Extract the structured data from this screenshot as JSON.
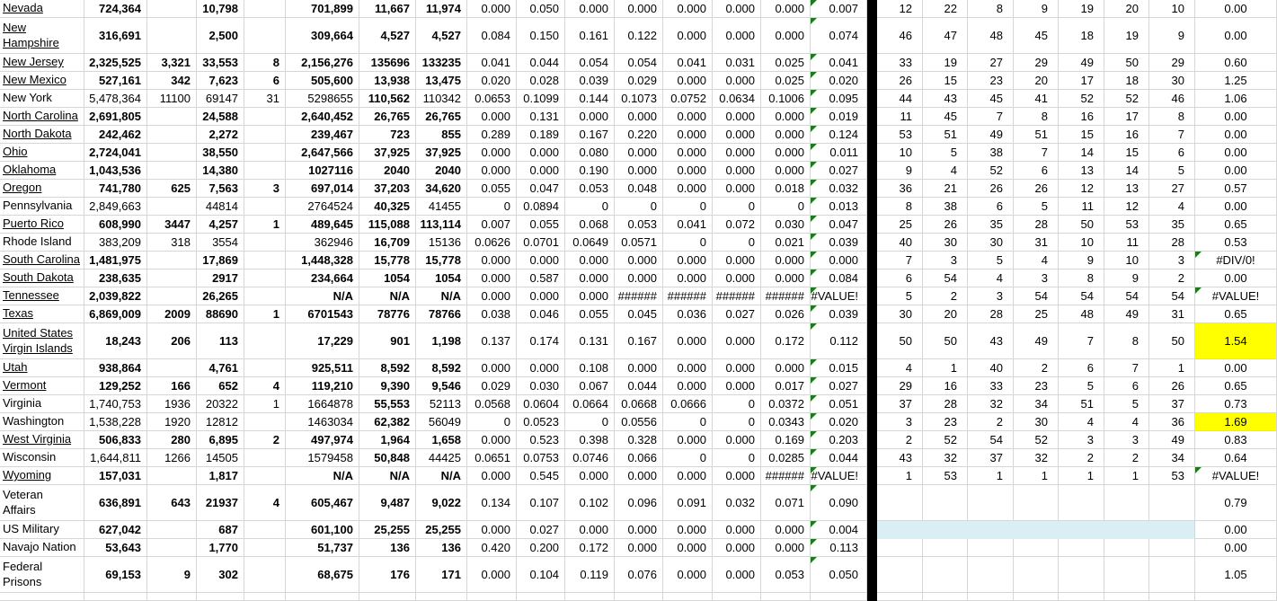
{
  "colors": {
    "highlight_yellow": "#ffff00",
    "highlight_blue": "#daeef3",
    "error_indicator_green": "#1f7a1f",
    "divider_black": "#000000",
    "gridline": "#d6d6d6"
  },
  "table": {
    "rows": [
      {
        "name": "Nevada",
        "underlined": true,
        "bold": true,
        "left": [
          "724,364",
          "",
          "10,798",
          "",
          "701,899",
          "11,667",
          "11,974"
        ],
        "decimals": [
          "0.000",
          "0.050",
          "0.000",
          "0.000",
          "0.000",
          "0.000",
          "0.000"
        ],
        "summary": "0.007",
        "ranks": [
          "12",
          "22",
          "8",
          "9",
          "19",
          "20",
          "10"
        ],
        "final": "0.00",
        "final_highlight": false,
        "ranks_highlight": false
      },
      {
        "name": "New\nHampshire",
        "underlined": true,
        "bold": true,
        "left": [
          "316,691",
          "",
          "2,500",
          "",
          "309,664",
          "4,527",
          "4,527"
        ],
        "decimals": [
          "0.084",
          "0.150",
          "0.161",
          "0.122",
          "0.000",
          "0.000",
          "0.000"
        ],
        "summary": "0.074",
        "ranks": [
          "46",
          "47",
          "48",
          "45",
          "18",
          "19",
          "9"
        ],
        "final": "0.00",
        "final_highlight": false,
        "ranks_highlight": false
      },
      {
        "name": "New Jersey",
        "underlined": true,
        "bold": true,
        "left": [
          "2,325,525",
          "3,321",
          "33,553",
          "8",
          "2,156,276",
          "135696",
          "133235"
        ],
        "decimals": [
          "0.041",
          "0.044",
          "0.054",
          "0.054",
          "0.041",
          "0.031",
          "0.025"
        ],
        "summary": "0.041",
        "ranks": [
          "33",
          "19",
          "27",
          "29",
          "49",
          "50",
          "29"
        ],
        "final": "0.60",
        "final_highlight": false,
        "ranks_highlight": false
      },
      {
        "name": "New Mexico",
        "underlined": true,
        "bold": true,
        "left": [
          "527,161",
          "342",
          "7,623",
          "6",
          "505,600",
          "13,938",
          "13,475"
        ],
        "decimals": [
          "0.020",
          "0.028",
          "0.039",
          "0.029",
          "0.000",
          "0.000",
          "0.025"
        ],
        "summary": "0.020",
        "ranks": [
          "26",
          "15",
          "23",
          "20",
          "17",
          "18",
          "30"
        ],
        "final": "1.25",
        "final_highlight": false,
        "ranks_highlight": false
      },
      {
        "name": "New York",
        "underlined": false,
        "bold": false,
        "left": [
          "5,478,364",
          "11100",
          "69147",
          "31",
          "5298655",
          "110,562",
          "110342"
        ],
        "decimals": [
          "0.0653",
          "0.1099",
          "0.144",
          "0.1073",
          "0.0752",
          "0.0634",
          "0.1006"
        ],
        "summary": "0.095",
        "ranks": [
          "44",
          "43",
          "45",
          "41",
          "52",
          "52",
          "46"
        ],
        "final": "1.06",
        "final_highlight": false,
        "ranks_highlight": false
      },
      {
        "name": "North Carolina",
        "underlined": true,
        "bold": true,
        "left": [
          "2,691,805",
          "",
          "24,588",
          "",
          "2,640,452",
          "26,765",
          "26,765"
        ],
        "decimals": [
          "0.000",
          "0.131",
          "0.000",
          "0.000",
          "0.000",
          "0.000",
          "0.000"
        ],
        "summary": "0.019",
        "ranks": [
          "11",
          "45",
          "7",
          "8",
          "16",
          "17",
          "8"
        ],
        "final": "0.00",
        "final_highlight": false,
        "ranks_highlight": false
      },
      {
        "name": "North Dakota",
        "underlined": true,
        "bold": true,
        "left": [
          "242,462",
          "",
          "2,272",
          "",
          "239,467",
          "723",
          "855"
        ],
        "decimals": [
          "0.289",
          "0.189",
          "0.167",
          "0.220",
          "0.000",
          "0.000",
          "0.000"
        ],
        "summary": "0.124",
        "ranks": [
          "53",
          "51",
          "49",
          "51",
          "15",
          "16",
          "7"
        ],
        "final": "0.00",
        "final_highlight": false,
        "ranks_highlight": false
      },
      {
        "name": "Ohio",
        "underlined": true,
        "bold": true,
        "left": [
          "2,724,041",
          "",
          "38,550",
          "",
          "2,647,566",
          "37,925",
          "37,925"
        ],
        "decimals": [
          "0.000",
          "0.000",
          "0.080",
          "0.000",
          "0.000",
          "0.000",
          "0.000"
        ],
        "summary": "0.011",
        "ranks": [
          "10",
          "5",
          "38",
          "7",
          "14",
          "15",
          "6"
        ],
        "final": "0.00",
        "final_highlight": false,
        "ranks_highlight": false
      },
      {
        "name": "Oklahoma",
        "underlined": true,
        "bold": true,
        "left": [
          "1,043,536",
          "",
          "14,380",
          "",
          "1027116",
          "2040",
          "2040"
        ],
        "decimals": [
          "0.000",
          "0.000",
          "0.190",
          "0.000",
          "0.000",
          "0.000",
          "0.000"
        ],
        "summary": "0.027",
        "ranks": [
          "9",
          "4",
          "52",
          "6",
          "13",
          "14",
          "5"
        ],
        "final": "0.00",
        "final_highlight": false,
        "ranks_highlight": false
      },
      {
        "name": "Oregon",
        "underlined": true,
        "bold": true,
        "left": [
          "741,780",
          "625",
          "7,563",
          "3",
          "697,014",
          "37,203",
          "34,620"
        ],
        "decimals": [
          "0.055",
          "0.047",
          "0.053",
          "0.048",
          "0.000",
          "0.000",
          "0.018"
        ],
        "summary": "0.032",
        "ranks": [
          "36",
          "21",
          "26",
          "26",
          "12",
          "13",
          "27"
        ],
        "final": "0.57",
        "final_highlight": false,
        "ranks_highlight": false
      },
      {
        "name": "Pennsylvania",
        "underlined": false,
        "bold": false,
        "left": [
          "2,849,663",
          "",
          "44814",
          "",
          "2764524",
          "40,325",
          "41455"
        ],
        "decimals": [
          "0",
          "0.0894",
          "0",
          "0",
          "0",
          "0",
          "0"
        ],
        "summary": "0.013",
        "ranks": [
          "8",
          "38",
          "6",
          "5",
          "11",
          "12",
          "4"
        ],
        "final": "0.00",
        "final_highlight": false,
        "ranks_highlight": false
      },
      {
        "name": "Puerto Rico",
        "underlined": true,
        "bold": true,
        "left": [
          "608,990",
          "3447",
          "4,257",
          "1",
          "489,645",
          "115,088",
          "113,114"
        ],
        "decimals": [
          "0.007",
          "0.055",
          "0.068",
          "0.053",
          "0.041",
          "0.072",
          "0.030"
        ],
        "summary": "0.047",
        "ranks": [
          "25",
          "26",
          "35",
          "28",
          "50",
          "53",
          "35"
        ],
        "final": "0.65",
        "final_highlight": false,
        "ranks_highlight": false
      },
      {
        "name": "Rhode Island",
        "underlined": false,
        "bold": false,
        "left": [
          "383,209",
          "318",
          "3554",
          "",
          "362946",
          "16,709",
          "15136"
        ],
        "decimals": [
          "0.0626",
          "0.0701",
          "0.0649",
          "0.0571",
          "0",
          "0",
          "0.021"
        ],
        "summary": "0.039",
        "ranks": [
          "40",
          "30",
          "30",
          "31",
          "10",
          "11",
          "28"
        ],
        "final": "0.53",
        "final_highlight": false,
        "ranks_highlight": false
      },
      {
        "name": "South Carolina",
        "underlined": true,
        "bold": true,
        "left": [
          "1,481,975",
          "",
          "17,869",
          "",
          "1,448,328",
          "15,778",
          "15,778"
        ],
        "decimals": [
          "0.000",
          "0.000",
          "0.000",
          "0.000",
          "0.000",
          "0.000",
          "0.000"
        ],
        "summary": "0.000",
        "ranks": [
          "7",
          "3",
          "5",
          "4",
          "9",
          "10",
          "3"
        ],
        "final": "#DIV/0!",
        "final_highlight": false,
        "ranks_highlight": false
      },
      {
        "name": "South Dakota",
        "underlined": true,
        "bold": true,
        "left": [
          "238,635",
          "",
          "2917",
          "",
          "234,664",
          "1054",
          "1054"
        ],
        "decimals": [
          "0.000",
          "0.587",
          "0.000",
          "0.000",
          "0.000",
          "0.000",
          "0.000"
        ],
        "summary": "0.084",
        "ranks": [
          "6",
          "54",
          "4",
          "3",
          "8",
          "9",
          "2"
        ],
        "final": "0.00",
        "final_highlight": false,
        "ranks_highlight": false
      },
      {
        "name": "Tennessee",
        "underlined": true,
        "bold": true,
        "left": [
          "2,039,822",
          "",
          "26,265",
          "",
          "N/A",
          "N/A",
          "N/A"
        ],
        "decimals": [
          "0.000",
          "0.000",
          "0.000",
          "######",
          "######",
          "######",
          "######"
        ],
        "summary": "#VALUE!",
        "ranks": [
          "5",
          "2",
          "3",
          "54",
          "54",
          "54",
          "54"
        ],
        "final": "#VALUE!",
        "final_highlight": false,
        "ranks_highlight": false
      },
      {
        "name": "Texas",
        "underlined": true,
        "bold": true,
        "left": [
          "6,869,009",
          "2009",
          "88690",
          "1",
          "6701543",
          "78776",
          "78766"
        ],
        "decimals": [
          "0.038",
          "0.046",
          "0.055",
          "0.045",
          "0.036",
          "0.027",
          "0.026"
        ],
        "summary": "0.039",
        "ranks": [
          "30",
          "20",
          "28",
          "25",
          "48",
          "49",
          "31"
        ],
        "final": "0.65",
        "final_highlight": false,
        "ranks_highlight": false
      },
      {
        "name": "United States\nVirgin Islands",
        "underlined": true,
        "bold": true,
        "left": [
          "18,243",
          "206",
          "113",
          "",
          "17,229",
          "901",
          "1,198"
        ],
        "decimals": [
          "0.137",
          "0.174",
          "0.131",
          "0.167",
          "0.000",
          "0.000",
          "0.172"
        ],
        "summary": "0.112",
        "ranks": [
          "50",
          "50",
          "43",
          "49",
          "7",
          "8",
          "50"
        ],
        "final": "1.54",
        "final_highlight": true,
        "ranks_highlight": false
      },
      {
        "name": "Utah",
        "underlined": true,
        "bold": true,
        "left": [
          "938,864",
          "",
          "4,761",
          "",
          "925,511",
          "8,592",
          "8,592"
        ],
        "decimals": [
          "0.000",
          "0.000",
          "0.108",
          "0.000",
          "0.000",
          "0.000",
          "0.000"
        ],
        "summary": "0.015",
        "ranks": [
          "4",
          "1",
          "40",
          "2",
          "6",
          "7",
          "1"
        ],
        "final": "0.00",
        "final_highlight": false,
        "ranks_highlight": false
      },
      {
        "name": "Vermont",
        "underlined": true,
        "bold": true,
        "left": [
          "129,252",
          "166",
          "652",
          "4",
          "119,210",
          "9,390",
          "9,546"
        ],
        "decimals": [
          "0.029",
          "0.030",
          "0.067",
          "0.044",
          "0.000",
          "0.000",
          "0.017"
        ],
        "summary": "0.027",
        "ranks": [
          "29",
          "16",
          "33",
          "23",
          "5",
          "6",
          "26"
        ],
        "final": "0.65",
        "final_highlight": false,
        "ranks_highlight": false
      },
      {
        "name": "Virginia",
        "underlined": false,
        "bold": false,
        "left": [
          "1,740,753",
          "1936",
          "20322",
          "1",
          "1664878",
          "55,553",
          "52113"
        ],
        "decimals": [
          "0.0568",
          "0.0604",
          "0.0664",
          "0.0668",
          "0.0666",
          "0",
          "0.0372"
        ],
        "summary": "0.051",
        "ranks": [
          "37",
          "28",
          "32",
          "34",
          "51",
          "5",
          "37"
        ],
        "final": "0.73",
        "final_highlight": false,
        "ranks_highlight": false
      },
      {
        "name": "Washington",
        "underlined": false,
        "bold": false,
        "left": [
          "1,538,228",
          "1920",
          "12812",
          "",
          "1463034",
          "62,382",
          "56049"
        ],
        "decimals": [
          "0",
          "0.0523",
          "0",
          "0.0556",
          "0",
          "0",
          "0.0343"
        ],
        "summary": "0.020",
        "ranks": [
          "3",
          "23",
          "2",
          "30",
          "4",
          "4",
          "36"
        ],
        "final": "1.69",
        "final_highlight": true,
        "ranks_highlight": false
      },
      {
        "name": "West Virginia",
        "underlined": true,
        "bold": true,
        "left": [
          "506,833",
          "280",
          "6,895",
          "2",
          "497,974",
          "1,964",
          "1,658"
        ],
        "decimals": [
          "0.000",
          "0.523",
          "0.398",
          "0.328",
          "0.000",
          "0.000",
          "0.169"
        ],
        "summary": "0.203",
        "ranks": [
          "2",
          "52",
          "54",
          "52",
          "3",
          "3",
          "49"
        ],
        "final": "0.83",
        "final_highlight": false,
        "ranks_highlight": false
      },
      {
        "name": "Wisconsin",
        "underlined": false,
        "bold": false,
        "left": [
          "1,644,811",
          "1266",
          "14505",
          "",
          "1579458",
          "50,848",
          "44425"
        ],
        "decimals": [
          "0.0651",
          "0.0753",
          "0.0746",
          "0.066",
          "0",
          "0",
          "0.0285"
        ],
        "summary": "0.044",
        "ranks": [
          "43",
          "32",
          "37",
          "32",
          "2",
          "2",
          "34"
        ],
        "final": "0.64",
        "final_highlight": false,
        "ranks_highlight": false
      },
      {
        "name": "Wyoming",
        "underlined": true,
        "bold": true,
        "left": [
          "157,031",
          "",
          "1,817",
          "",
          "N/A",
          "N/A",
          "N/A"
        ],
        "decimals": [
          "0.000",
          "0.545",
          "0.000",
          "0.000",
          "0.000",
          "0.000",
          "######"
        ],
        "summary": "#VALUE!",
        "ranks": [
          "1",
          "53",
          "1",
          "1",
          "1",
          "1",
          "53"
        ],
        "final": "#VALUE!",
        "final_highlight": false,
        "ranks_highlight": false
      },
      {
        "name": "Veteran\nAffairs",
        "underlined": false,
        "bold": true,
        "left": [
          "636,891",
          "643",
          "21937",
          "4",
          "605,467",
          "9,487",
          "9,022"
        ],
        "decimals": [
          "0.134",
          "0.107",
          "0.102",
          "0.096",
          "0.091",
          "0.032",
          "0.071"
        ],
        "summary": "0.090",
        "ranks": [
          "",
          "",
          "",
          "",
          "",
          "",
          ""
        ],
        "final": "0.79",
        "final_highlight": false,
        "ranks_highlight": false
      },
      {
        "name": "US Military",
        "underlined": false,
        "bold": true,
        "left": [
          "627,042",
          "",
          "687",
          "",
          "601,100",
          "25,255",
          "25,255"
        ],
        "decimals": [
          "0.000",
          "0.027",
          "0.000",
          "0.000",
          "0.000",
          "0.000",
          "0.000"
        ],
        "summary": "0.004",
        "ranks": [
          "",
          "",
          "",
          "",
          "",
          "",
          ""
        ],
        "final": "0.00",
        "final_highlight": false,
        "ranks_highlight": true
      },
      {
        "name": "Navajo Nation",
        "underlined": false,
        "bold": true,
        "left": [
          "53,643",
          "",
          "1,770",
          "",
          "51,737",
          "136",
          "136"
        ],
        "decimals": [
          "0.420",
          "0.200",
          "0.172",
          "0.000",
          "0.000",
          "0.000",
          "0.000"
        ],
        "summary": "0.113",
        "ranks": [
          "",
          "",
          "",
          "",
          "",
          "",
          ""
        ],
        "final": "0.00",
        "final_highlight": false,
        "ranks_highlight": false
      },
      {
        "name": "Federal\nPrisons",
        "underlined": false,
        "bold": true,
        "left": [
          "69,153",
          "9",
          "302",
          "",
          "68,675",
          "176",
          "171"
        ],
        "decimals": [
          "0.000",
          "0.104",
          "0.119",
          "0.076",
          "0.000",
          "0.000",
          "0.053"
        ],
        "summary": "0.050",
        "ranks": [
          "",
          "",
          "",
          "",
          "",
          "",
          ""
        ],
        "final": "1.05",
        "final_highlight": false,
        "ranks_highlight": false
      }
    ]
  }
}
